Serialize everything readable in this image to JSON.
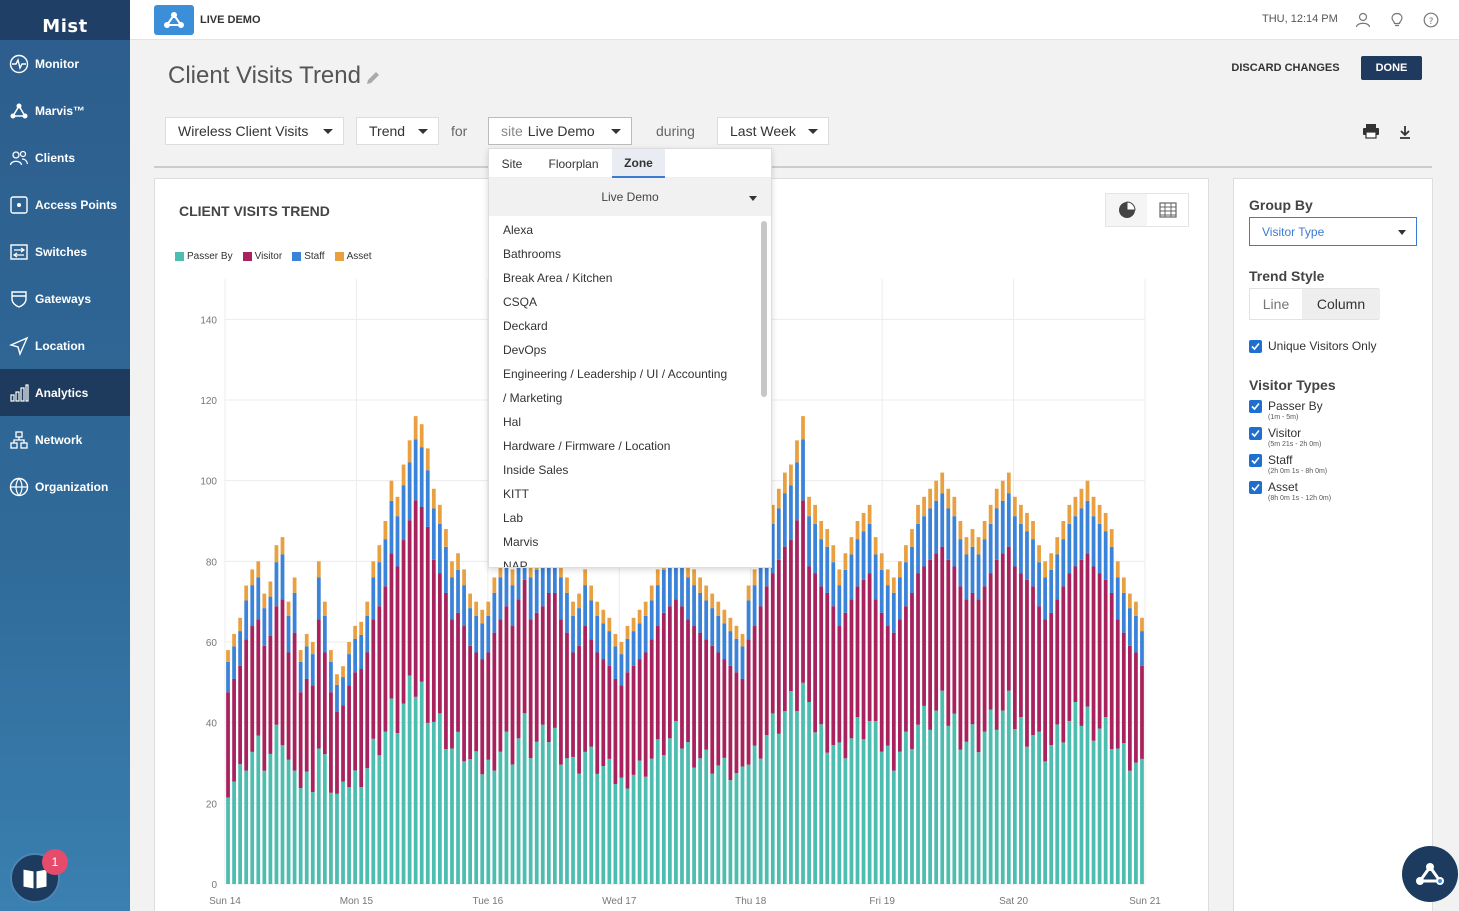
{
  "brand": {
    "logo_text": "Mist"
  },
  "sidebar": {
    "items": [
      {
        "label": "Monitor",
        "icon": "monitor-icon"
      },
      {
        "label": "Marvis™",
        "icon": "marvis-icon"
      },
      {
        "label": "Clients",
        "icon": "clients-icon"
      },
      {
        "label": "Access Points",
        "icon": "access-point-icon"
      },
      {
        "label": "Switches",
        "icon": "switch-icon"
      },
      {
        "label": "Gateways",
        "icon": "gateway-icon"
      },
      {
        "label": "Location",
        "icon": "location-icon"
      },
      {
        "label": "Analytics",
        "icon": "analytics-icon",
        "active": true
      },
      {
        "label": "Network",
        "icon": "network-icon"
      },
      {
        "label": "Organization",
        "icon": "organization-icon"
      }
    ],
    "help_badge": "1"
  },
  "topbar": {
    "org_name": "LIVE DEMO",
    "clock": "THU, 12:14 PM"
  },
  "page": {
    "title": "Client Visits Trend",
    "discard_label": "DISCARD CHANGES",
    "done_label": "DONE"
  },
  "filters": {
    "metric": "Wireless Client Visits",
    "view": "Trend",
    "for_label": "for",
    "scope_prefix": "site",
    "scope_value": "Live Demo",
    "during_label": "during",
    "period": "Last Week"
  },
  "zone_popover": {
    "tabs": [
      "Site",
      "Floorplan",
      "Zone"
    ],
    "active_tab": "Zone",
    "site_select": "Live Demo",
    "zones": [
      "Alexa",
      "Bathrooms",
      "Break Area / Kitchen",
      "CSQA",
      "Deckard",
      "DevOps",
      "Engineering / Leadership / UI / Accounting",
      "/ Marketing",
      "Hal",
      "Hardware / Firmware / Location",
      "Inside Sales",
      "KITT",
      "Lab",
      "Marvis",
      "NAP"
    ]
  },
  "right_panel": {
    "group_by_label": "Group By",
    "group_by_value": "Visitor Type",
    "trend_style_label": "Trend Style",
    "trend_styles": [
      "Line",
      "Column"
    ],
    "trend_style_selected": "Column",
    "unique_visitors_label": "Unique Visitors Only",
    "visitor_types_label": "Visitor Types",
    "visitor_types": [
      {
        "label": "Passer By",
        "range": "(1m - 5m)"
      },
      {
        "label": "Visitor",
        "range": "(5m 21s - 2h 0m)"
      },
      {
        "label": "Staff",
        "range": "(2h 0m 1s - 8h 0m)"
      },
      {
        "label": "Asset",
        "range": "(8h 0m 1s - 12h 0m)"
      }
    ]
  },
  "colors": {
    "passer_by": "#4dbdb0",
    "visitor": "#a8225e",
    "staff": "#3b82d9",
    "asset": "#e8a040"
  },
  "chart_data": {
    "type": "bar",
    "stacked": true,
    "title": "CLIENT VISITS TREND",
    "ylim": [
      0,
      150
    ],
    "yticks": [
      0,
      20,
      40,
      60,
      80,
      100,
      120,
      140
    ],
    "xticks": [
      "Sun 14",
      "Mon 15",
      "Tue 16",
      "Wed 17",
      "Thu 18",
      "Fri 19",
      "Sat 20",
      "Sun 21"
    ],
    "legend_position": "top-left",
    "grid": true,
    "series_names": [
      "Passer By",
      "Visitor",
      "Staff",
      "Asset"
    ],
    "totals": [
      58,
      62,
      66,
      74,
      78,
      80,
      72,
      75,
      84,
      86,
      70,
      76,
      58,
      62,
      60,
      80,
      70,
      58,
      52,
      54,
      60,
      64,
      65,
      70,
      80,
      84,
      90,
      100,
      96,
      104,
      110,
      116,
      114,
      108,
      98,
      94,
      88,
      80,
      82,
      78,
      72,
      70,
      68,
      70,
      76,
      80,
      84,
      78,
      86,
      92,
      80,
      82,
      84,
      88,
      88,
      80,
      76,
      70,
      72,
      78,
      74,
      70,
      68,
      66,
      62,
      60,
      64,
      66,
      68,
      70,
      74,
      78,
      82,
      84,
      86,
      84,
      80,
      78,
      76,
      74,
      72,
      70,
      68,
      66,
      64,
      62,
      74,
      78,
      84,
      90,
      94,
      98,
      102,
      104,
      110,
      116,
      96,
      94,
      90,
      88,
      84,
      78,
      82,
      86,
      90,
      92,
      94,
      86,
      82,
      78,
      76,
      80,
      84,
      88,
      94,
      96,
      98,
      100,
      102,
      98,
      96,
      90,
      86,
      88,
      86,
      90,
      94,
      98,
      100,
      102,
      96,
      94,
      92,
      90,
      84,
      80,
      82,
      86,
      90,
      94,
      96,
      98,
      100,
      96,
      94,
      92,
      88,
      80,
      76,
      72,
      70,
      66
    ]
  }
}
